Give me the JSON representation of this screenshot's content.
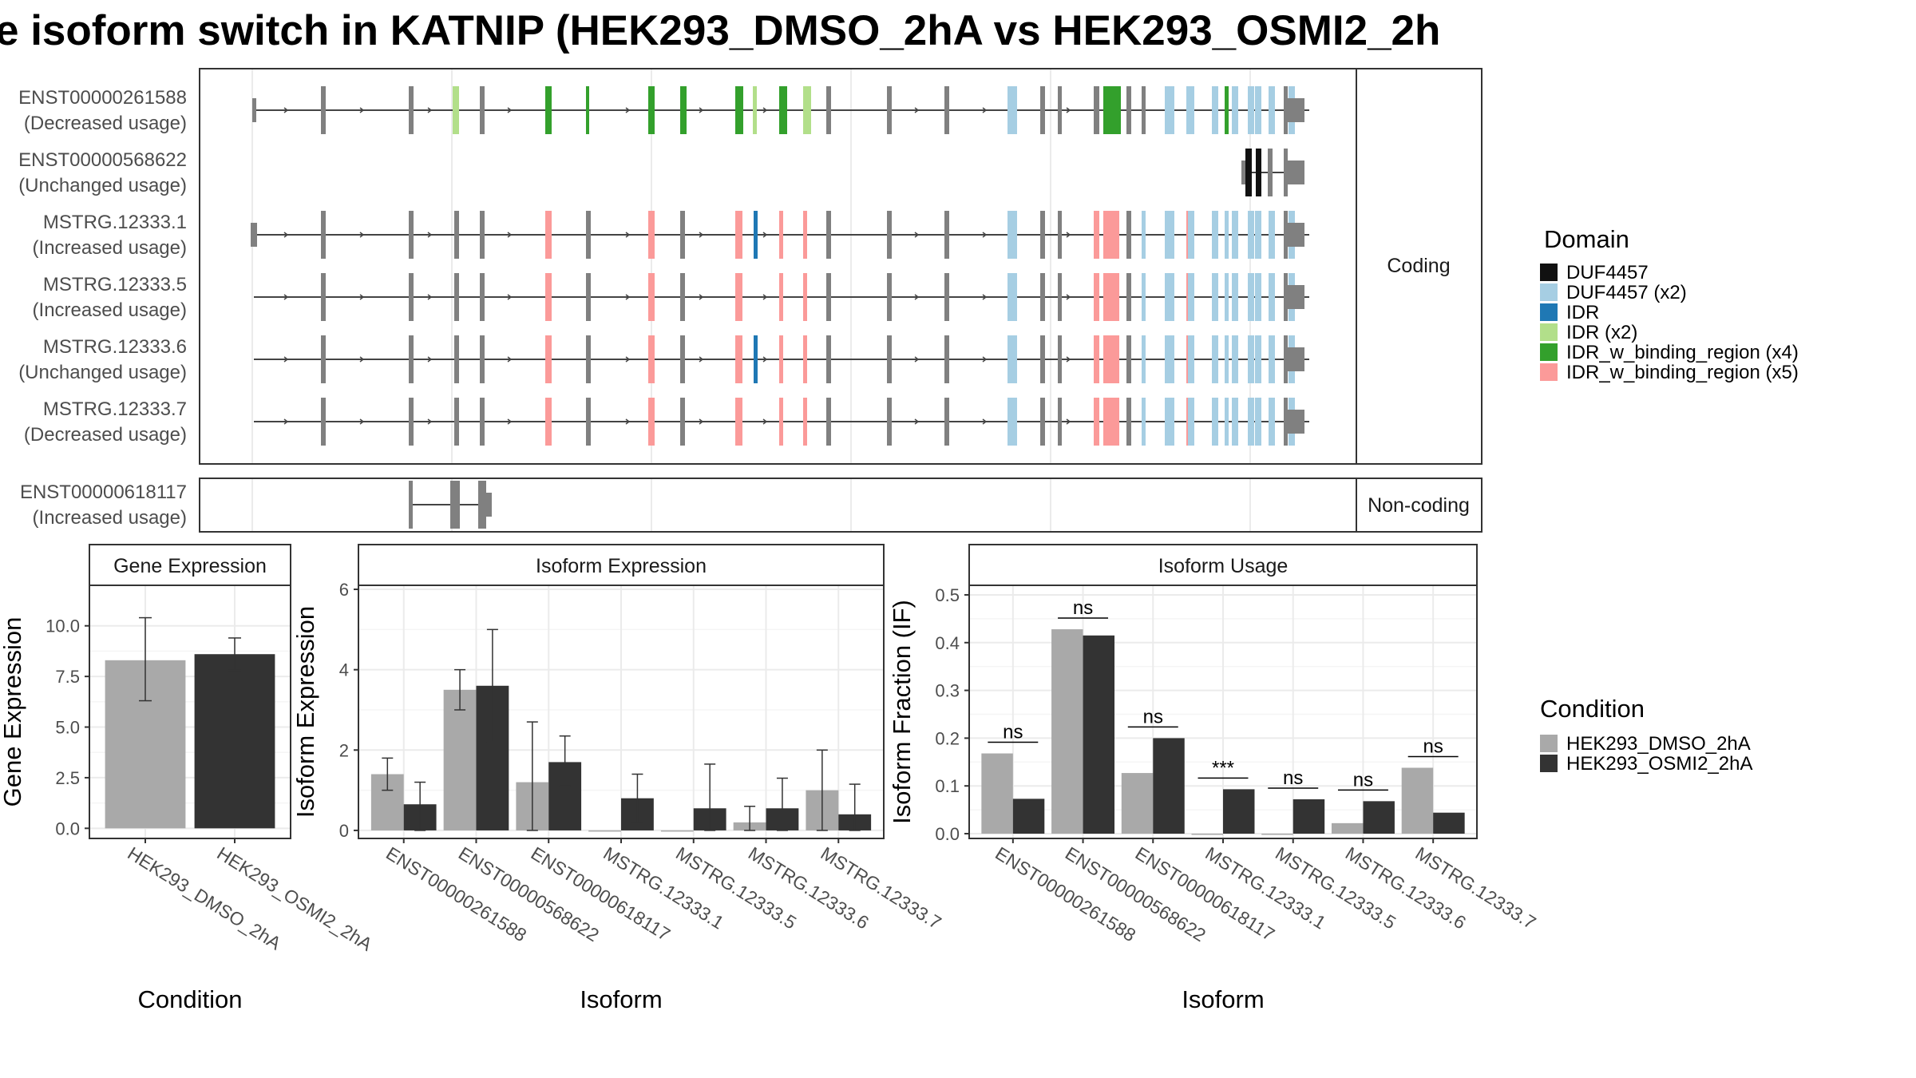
{
  "title": "e isoform switch in KATNIP (HEK293_DMSO_2hA vs HEK293_OSMI2_2h",
  "colors": {
    "DUF4457": "#111111",
    "DUF4457 (x2)": "#a6cee3",
    "IDR": "#1f78b4",
    "IDR (x2)": "#b2df8a",
    "IDR_w_binding_region (x4)": "#33a02c",
    "IDR_w_binding_region (x5)": "#fb9a99",
    "exon": "#808080",
    "dmso": "#a9a9a9",
    "osmi": "#333333"
  },
  "structure": {
    "coding_label": "Coding",
    "noncoding_label": "Non-coding",
    "legend_title": "Domain",
    "legend_items": [
      "DUF4457",
      "DUF4457 (x2)",
      "IDR",
      "IDR (x2)",
      "IDR_w_binding_region (x4)",
      "IDR_w_binding_region (x5)"
    ],
    "coding_tracks": [
      {
        "id": "ENST00000261588",
        "usage": "(Decreased usage)"
      },
      {
        "id": "ENST00000568622",
        "usage": "(Unchanged usage)"
      },
      {
        "id": "MSTRG.12333.1",
        "usage": "(Increased usage)"
      },
      {
        "id": "MSTRG.12333.5",
        "usage": "(Increased usage)"
      },
      {
        "id": "MSTRG.12333.6",
        "usage": "(Unchanged usage)"
      },
      {
        "id": "MSTRG.12333.7",
        "usage": "(Decreased usage)"
      }
    ],
    "noncoding_tracks": [
      {
        "id": "ENST00000618117",
        "usage": "(Increased usage)"
      }
    ]
  },
  "chart_data": [
    {
      "type": "bar",
      "title": "Gene Expression",
      "xlabel": "Condition",
      "ylabel": "Gene Expression",
      "ylim": [
        -0.5,
        12
      ],
      "yticks": [
        "0.0",
        "2.5",
        "5.0",
        "7.5",
        "10.0"
      ],
      "categories": [
        "HEK293_DMSO_2hA",
        "HEK293_OSMI2_2hA"
      ],
      "values": [
        8.3,
        8.6
      ],
      "error_low": [
        6.3,
        7.8
      ],
      "error_high": [
        10.4,
        9.4
      ]
    },
    {
      "type": "bar",
      "title": "Isoform Expression",
      "xlabel": "Isoform",
      "ylabel": "Isoform Expression",
      "ylim": [
        -0.2,
        6.1
      ],
      "yticks": [
        "0",
        "2",
        "4",
        "6"
      ],
      "categories": [
        "ENST00000261588",
        "ENST00000568622",
        "ENST00000618117",
        "MSTRG.12333.1",
        "MSTRG.12333.5",
        "MSTRG.12333.6",
        "MSTRG.12333.7"
      ],
      "series": [
        {
          "name": "HEK293_DMSO_2hA",
          "values": [
            1.4,
            3.5,
            1.2,
            0.0,
            0.0,
            0.2,
            1.0
          ],
          "error_low": [
            1.0,
            3.0,
            0.0,
            0.0,
            0.0,
            0.0,
            0.0
          ],
          "error_high": [
            1.8,
            4.0,
            2.7,
            0.0,
            0.0,
            0.6,
            2.0
          ]
        },
        {
          "name": "HEK293_OSMI2_2hA",
          "values": [
            0.65,
            3.6,
            1.7,
            0.8,
            0.55,
            0.55,
            0.4
          ],
          "error_low": [
            0.0,
            2.2,
            1.1,
            0.2,
            0.0,
            0.0,
            0.0
          ],
          "error_high": [
            1.2,
            5.0,
            2.35,
            1.4,
            1.65,
            1.3,
            1.15
          ]
        }
      ]
    },
    {
      "type": "bar",
      "title": "Isoform Usage",
      "xlabel": "Isoform",
      "ylabel": "Isoform Fraction (IF)",
      "ylim": [
        -0.01,
        0.52
      ],
      "yticks": [
        "0.0",
        "0.1",
        "0.2",
        "0.3",
        "0.4",
        "0.5"
      ],
      "categories": [
        "ENST00000261588",
        "ENST00000568622",
        "ENST00000618117",
        "MSTRG.12333.1",
        "MSTRG.12333.5",
        "MSTRG.12333.6",
        "MSTRG.12333.7"
      ],
      "series": [
        {
          "name": "HEK293_DMSO_2hA",
          "values": [
            0.168,
            0.428,
            0.127,
            0.0,
            0.0,
            0.022,
            0.138
          ]
        },
        {
          "name": "HEK293_OSMI2_2hA",
          "values": [
            0.073,
            0.415,
            0.2,
            0.093,
            0.072,
            0.068,
            0.044
          ]
        }
      ],
      "significance": [
        "ns",
        "ns",
        "ns",
        "***",
        "ns",
        "ns",
        "ns"
      ]
    }
  ],
  "condition_legend": {
    "title": "Condition",
    "items": [
      "HEK293_DMSO_2hA",
      "HEK293_OSMI2_2hA"
    ]
  }
}
